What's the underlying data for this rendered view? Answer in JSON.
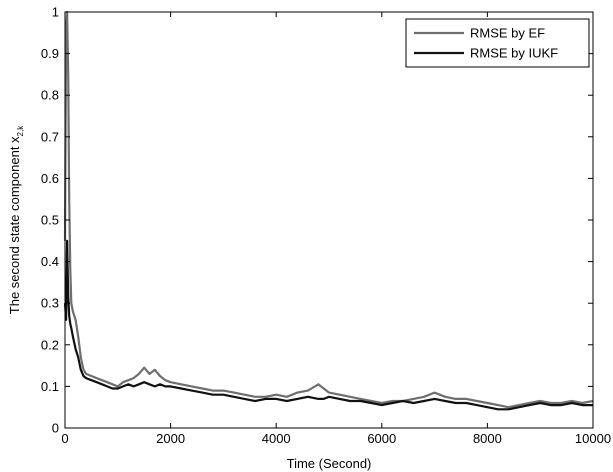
{
  "chart_data": {
    "type": "line",
    "xlabel": "Time (Second)",
    "ylabel_main": "The second state component x",
    "ylabel_sub": "2,k",
    "xlim": [
      0,
      10000
    ],
    "ylim": [
      0,
      1
    ],
    "xticks": [
      0,
      2000,
      4000,
      6000,
      8000,
      10000
    ],
    "yticks": [
      0,
      0.1,
      0.2,
      0.3,
      0.4,
      0.5,
      0.6,
      0.7,
      0.8,
      0.9,
      1
    ],
    "grid": false,
    "legend_position": "top-right",
    "series": [
      {
        "name": "RMSE by EF",
        "color": "#6e6e6e",
        "x": [
          0,
          20,
          40,
          60,
          80,
          100,
          120,
          150,
          200,
          250,
          300,
          350,
          400,
          500,
          600,
          700,
          800,
          900,
          1000,
          1100,
          1200,
          1300,
          1400,
          1500,
          1600,
          1700,
          1800,
          1900,
          2000,
          2200,
          2400,
          2600,
          2800,
          3000,
          3200,
          3400,
          3600,
          3800,
          4000,
          4200,
          4400,
          4600,
          4800,
          4900,
          5000,
          5200,
          5400,
          5600,
          5800,
          6000,
          6200,
          6400,
          6600,
          6800,
          7000,
          7200,
          7400,
          7600,
          7800,
          8000,
          8200,
          8400,
          8600,
          8800,
          9000,
          9200,
          9400,
          9600,
          9800,
          10000
        ],
        "y": [
          0.45,
          0.95,
          1.0,
          0.85,
          0.55,
          0.38,
          0.3,
          0.28,
          0.26,
          0.22,
          0.17,
          0.14,
          0.13,
          0.125,
          0.12,
          0.115,
          0.11,
          0.105,
          0.1,
          0.11,
          0.115,
          0.12,
          0.13,
          0.145,
          0.13,
          0.14,
          0.125,
          0.115,
          0.11,
          0.105,
          0.1,
          0.095,
          0.09,
          0.09,
          0.085,
          0.08,
          0.075,
          0.075,
          0.08,
          0.075,
          0.085,
          0.09,
          0.105,
          0.095,
          0.085,
          0.08,
          0.075,
          0.07,
          0.065,
          0.06,
          0.065,
          0.065,
          0.07,
          0.075,
          0.085,
          0.075,
          0.07,
          0.07,
          0.065,
          0.06,
          0.055,
          0.05,
          0.055,
          0.06,
          0.065,
          0.06,
          0.06,
          0.065,
          0.06,
          0.065
        ]
      },
      {
        "name": "RMSE by IUKF",
        "color": "#111111",
        "x": [
          0,
          20,
          40,
          60,
          80,
          100,
          120,
          150,
          200,
          250,
          300,
          350,
          400,
          500,
          600,
          700,
          800,
          900,
          1000,
          1100,
          1200,
          1300,
          1400,
          1500,
          1600,
          1700,
          1800,
          1900,
          2000,
          2200,
          2400,
          2600,
          2800,
          3000,
          3200,
          3400,
          3600,
          3800,
          4000,
          4200,
          4400,
          4600,
          4800,
          4900,
          5000,
          5200,
          5400,
          5600,
          5800,
          6000,
          6200,
          6400,
          6600,
          6800,
          7000,
          7200,
          7400,
          7600,
          7800,
          8000,
          8200,
          8400,
          8600,
          8800,
          9000,
          9200,
          9400,
          9600,
          9800,
          10000
        ],
        "y": [
          0.3,
          0.26,
          0.45,
          0.32,
          0.27,
          0.25,
          0.24,
          0.22,
          0.19,
          0.17,
          0.14,
          0.125,
          0.12,
          0.115,
          0.11,
          0.105,
          0.1,
          0.095,
          0.095,
          0.1,
          0.105,
          0.1,
          0.105,
          0.11,
          0.105,
          0.1,
          0.105,
          0.1,
          0.1,
          0.095,
          0.09,
          0.085,
          0.08,
          0.08,
          0.075,
          0.07,
          0.065,
          0.07,
          0.07,
          0.065,
          0.07,
          0.075,
          0.07,
          0.07,
          0.075,
          0.07,
          0.065,
          0.065,
          0.06,
          0.055,
          0.06,
          0.065,
          0.06,
          0.065,
          0.07,
          0.065,
          0.06,
          0.06,
          0.055,
          0.05,
          0.045,
          0.045,
          0.05,
          0.055,
          0.06,
          0.055,
          0.055,
          0.06,
          0.055,
          0.055
        ]
      }
    ]
  }
}
